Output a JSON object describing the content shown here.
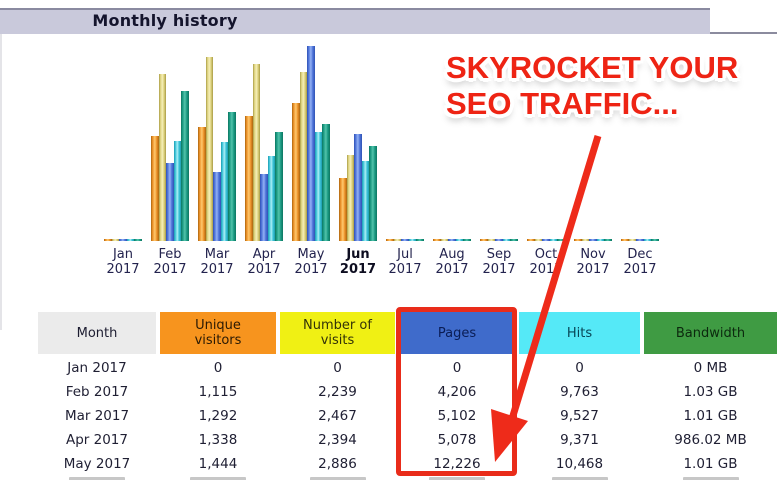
{
  "page": {
    "title": "Monthly history"
  },
  "annotation": {
    "line1": "SKYROCKET YOUR",
    "line2": "SEO TRAFFIC...",
    "color": "#ee2414",
    "arrow_color": "#ee2b1a",
    "box_color": "#e92c1a"
  },
  "chart_data": {
    "type": "bar",
    "title": "Monthly history",
    "categories": [
      "Jan 2017",
      "Feb 2017",
      "Mar 2017",
      "Apr 2017",
      "May 2017",
      "Jun 2017",
      "Jul 2017",
      "Aug 2017",
      "Sep 2017",
      "Oct 2017",
      "Nov 2017",
      "Dec 2017"
    ],
    "bold_category": "Jun 2017",
    "note": "Each series is scaled independently to its own maximum; months with no data show flat stubs. Jun 2017 bars are drawn but its table row is cut off.",
    "series": [
      {
        "key": "unique_visitors",
        "name": "Unique visitors",
        "color_key": "orange",
        "values": [
          0,
          1115,
          1292,
          1338,
          1444,
          null,
          null,
          null,
          null,
          null,
          null,
          null
        ]
      },
      {
        "key": "visits",
        "name": "Number of visits",
        "color_key": "khaki",
        "values": [
          0,
          2239,
          2467,
          2394,
          2886,
          null,
          null,
          null,
          null,
          null,
          null,
          null
        ]
      },
      {
        "key": "pages",
        "name": "Pages",
        "color_key": "blue",
        "values": [
          0,
          4206,
          5102,
          5078,
          12226,
          null,
          null,
          null,
          null,
          null,
          null,
          null
        ]
      },
      {
        "key": "hits",
        "name": "Hits",
        "color_key": "cyan",
        "values": [
          0,
          9763,
          9527,
          9371,
          10468,
          null,
          null,
          null,
          null,
          null,
          null,
          null
        ]
      },
      {
        "key": "bandwidth",
        "name": "Bandwidth",
        "color_key": "teal",
        "values": [
          "0 MB",
          "1.03 GB",
          "1.01 GB",
          "986.02 MB",
          "1.01 GB",
          null,
          null,
          null,
          null,
          null,
          null,
          null
        ]
      }
    ],
    "bar_heights_pct": {
      "unique_visitors": [
        1,
        52.5,
        57,
        62.5,
        69,
        31.5,
        1,
        1,
        1,
        1,
        1,
        1
      ],
      "visits": [
        1,
        83.5,
        92,
        88.5,
        84.5,
        43,
        1,
        1,
        1,
        1,
        1,
        1
      ],
      "pages": [
        1,
        39,
        34.5,
        33.5,
        97.5,
        53.5,
        1,
        1,
        1,
        1,
        1,
        1
      ],
      "hits": [
        1,
        50,
        49.5,
        42.5,
        54.5,
        40,
        1,
        1,
        1,
        1,
        1,
        1
      ],
      "bandwidth": [
        1,
        75,
        64.5,
        54.5,
        58.5,
        47.5,
        1,
        1,
        1,
        1,
        1,
        1
      ]
    },
    "palette": {
      "orange": {
        "dark": "#a9650f",
        "mid": "#ec9129",
        "light": "#ffc96e"
      },
      "khaki": {
        "dark": "#a89b45",
        "mid": "#ddd27e",
        "light": "#f6efb8"
      },
      "blue": {
        "dark": "#2f52b4",
        "mid": "#4f74d9",
        "light": "#93b2f4"
      },
      "cyan": {
        "dark": "#1d9cb0",
        "mid": "#3ec5d9",
        "light": "#aceef5"
      },
      "teal": {
        "dark": "#0d7560",
        "mid": "#1b9b83",
        "light": "#53c3ab"
      }
    }
  },
  "table": {
    "headers": [
      {
        "label": "Month",
        "bg": "#ebebeb",
        "fg": "#1c1c30"
      },
      {
        "label": "Unique visitors",
        "bg": "#f7941e",
        "fg": "#2b1a04"
      },
      {
        "label": "Number of visits",
        "bg": "#f0f014",
        "fg": "#333308"
      },
      {
        "label": "Pages",
        "bg": "#3f6bcb",
        "fg": "#0a1d55"
      },
      {
        "label": "Hits",
        "bg": "#55e9f7",
        "fg": "#074757"
      },
      {
        "label": "Bandwidth",
        "bg": "#3f9b43",
        "fg": "#0c290e"
      }
    ],
    "rows": [
      [
        "Jan 2017",
        "0",
        "0",
        "0",
        "0",
        "0 MB"
      ],
      [
        "Feb 2017",
        "1,115",
        "2,239",
        "4,206",
        "9,763",
        "1.03 GB"
      ],
      [
        "Mar 2017",
        "1,292",
        "2,467",
        "5,102",
        "9,527",
        "1.01 GB"
      ],
      [
        "Apr 2017",
        "1,338",
        "2,394",
        "5,078",
        "9,371",
        "986.02 MB"
      ],
      [
        "May 2017",
        "1,444",
        "2,886",
        "12,226",
        "10,468",
        "1.01 GB"
      ]
    ]
  }
}
